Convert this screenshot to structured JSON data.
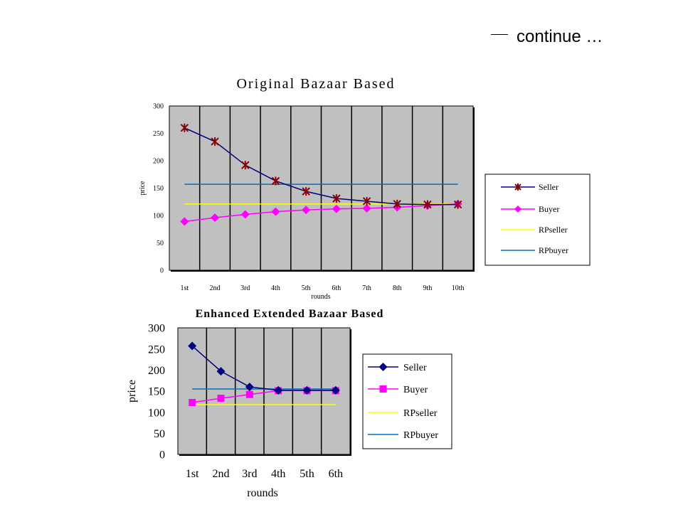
{
  "header": {
    "text": "continue …"
  },
  "chart_data": [
    {
      "type": "line",
      "title": "Original Bazaar Based",
      "xlabel": "rounds",
      "ylabel": "price",
      "categories": [
        "1st",
        "2nd",
        "3rd",
        "4th",
        "5th",
        "6th",
        "7th",
        "8th",
        "9th",
        "10th"
      ],
      "ylim": [
        0,
        300
      ],
      "yticks": [
        0,
        50,
        100,
        150,
        200,
        250,
        300
      ],
      "grid": "vertical",
      "legend_position": "right",
      "series": [
        {
          "name": "Seller",
          "color": "#000080",
          "marker": "x",
          "marker_color": "#8b0000",
          "values": [
            260,
            235,
            192,
            163,
            144,
            131,
            126,
            121,
            120,
            120
          ]
        },
        {
          "name": "Buyer",
          "color": "#ff00ff",
          "marker": "diamond",
          "marker_color": "#ff00ff",
          "values": [
            89,
            96,
            102,
            107,
            110,
            112,
            113,
            115,
            118,
            121
          ]
        },
        {
          "name": "RPseller",
          "color": "#ffff00",
          "marker": "none",
          "values": [
            121,
            121,
            121,
            121,
            121,
            121,
            121,
            121,
            121,
            121
          ]
        },
        {
          "name": "RPbuyer",
          "color": "#0070c0",
          "marker": "none",
          "values": [
            157,
            157,
            157,
            157,
            157,
            157,
            157,
            157,
            157,
            157
          ]
        }
      ]
    },
    {
      "type": "line",
      "title": "Enhanced Extended Bazaar Based",
      "xlabel": "rounds",
      "ylabel": "price",
      "categories": [
        "1st",
        "2nd",
        "3rd",
        "4th",
        "5th",
        "6th"
      ],
      "ylim": [
        0,
        300
      ],
      "yticks": [
        0,
        50,
        100,
        150,
        200,
        250,
        300
      ],
      "grid": "vertical",
      "legend_position": "right",
      "series": [
        {
          "name": "Seller",
          "color": "#000080",
          "marker": "diamond",
          "marker_color": "#000080",
          "values": [
            257,
            197,
            160,
            152,
            152,
            152
          ]
        },
        {
          "name": "Buyer",
          "color": "#ff00ff",
          "marker": "square",
          "marker_color": "#ff00ff",
          "values": [
            123,
            133,
            142,
            151,
            151,
            151
          ]
        },
        {
          "name": "RPseller",
          "color": "#ffff00",
          "marker": "none",
          "values": [
            118,
            118,
            118,
            118,
            118,
            118
          ]
        },
        {
          "name": "RPbuyer",
          "color": "#0070c0",
          "marker": "none",
          "values": [
            155,
            155,
            155,
            155,
            155,
            155
          ]
        }
      ]
    }
  ]
}
